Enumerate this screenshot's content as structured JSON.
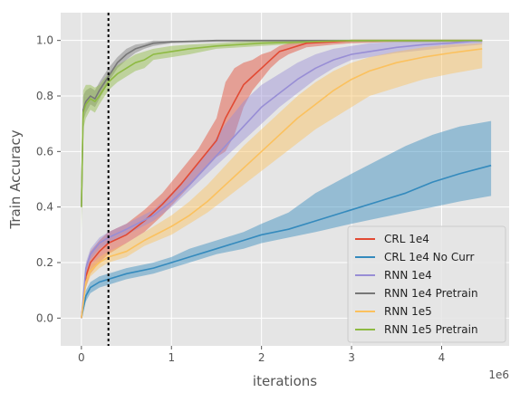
{
  "chart_data": {
    "type": "line",
    "title": "",
    "xlabel": "iterations",
    "ylabel": "Train Accuracy",
    "x_offset_label": "1e6",
    "xlim": [
      -0.23,
      4.75
    ],
    "ylim": [
      -0.1,
      1.1
    ],
    "x_ticks": [
      0,
      1,
      2,
      3,
      4
    ],
    "x_tick_labels": [
      "0",
      "1",
      "2",
      "3",
      "4"
    ],
    "y_ticks": [
      0.0,
      0.2,
      0.4,
      0.6,
      0.8,
      1.0
    ],
    "y_tick_labels": [
      "0.0",
      "0.2",
      "0.4",
      "0.6",
      "0.8",
      "1.0"
    ],
    "grid": true,
    "style": "ggplot",
    "legend_position": "lower-right",
    "vline": {
      "x": 0.3,
      "style": "dotted",
      "color": "#000000"
    },
    "series": [
      {
        "name": "CRL 1e4",
        "color": "#E24A33",
        "x": [
          0,
          0.05,
          0.1,
          0.2,
          0.3,
          0.5,
          0.7,
          0.9,
          1.1,
          1.3,
          1.5,
          1.6,
          1.7,
          1.8,
          1.9,
          2.0,
          2.1,
          2.2,
          2.3,
          2.5,
          2.8,
          3.0,
          3.5,
          4.0,
          4.45
        ],
        "y": [
          0.0,
          0.15,
          0.2,
          0.24,
          0.27,
          0.3,
          0.35,
          0.41,
          0.48,
          0.56,
          0.64,
          0.72,
          0.78,
          0.84,
          0.87,
          0.9,
          0.93,
          0.96,
          0.97,
          0.99,
          0.995,
          1.0,
          1.0,
          1.0,
          1.0
        ],
        "lower": [
          0.0,
          0.11,
          0.16,
          0.2,
          0.23,
          0.27,
          0.31,
          0.37,
          0.44,
          0.51,
          0.58,
          0.6,
          0.66,
          0.76,
          0.82,
          0.86,
          0.9,
          0.93,
          0.95,
          0.975,
          0.985,
          0.99,
          0.995,
          0.995,
          0.995
        ],
        "upper": [
          0.0,
          0.19,
          0.24,
          0.28,
          0.31,
          0.34,
          0.39,
          0.45,
          0.53,
          0.61,
          0.72,
          0.85,
          0.9,
          0.92,
          0.93,
          0.95,
          0.96,
          0.98,
          0.99,
          1.0,
          1.0,
          1.0,
          1.0,
          1.0,
          1.0
        ]
      },
      {
        "name": "CRL 1e4 No Curr",
        "color": "#348ABD",
        "x": [
          0,
          0.05,
          0.1,
          0.2,
          0.3,
          0.5,
          0.8,
          1.0,
          1.2,
          1.5,
          1.8,
          2.0,
          2.3,
          2.6,
          3.0,
          3.3,
          3.6,
          3.9,
          4.2,
          4.55
        ],
        "y": [
          0.0,
          0.08,
          0.11,
          0.13,
          0.14,
          0.16,
          0.18,
          0.2,
          0.22,
          0.25,
          0.28,
          0.3,
          0.32,
          0.35,
          0.39,
          0.42,
          0.45,
          0.49,
          0.52,
          0.55
        ],
        "lower": [
          0.0,
          0.06,
          0.09,
          0.11,
          0.12,
          0.14,
          0.16,
          0.18,
          0.2,
          0.23,
          0.25,
          0.27,
          0.29,
          0.31,
          0.34,
          0.36,
          0.38,
          0.4,
          0.42,
          0.44
        ],
        "upper": [
          0.0,
          0.1,
          0.13,
          0.15,
          0.16,
          0.18,
          0.2,
          0.22,
          0.25,
          0.28,
          0.31,
          0.34,
          0.38,
          0.45,
          0.52,
          0.57,
          0.62,
          0.66,
          0.69,
          0.71
        ]
      },
      {
        "name": "RNN 1e4",
        "color": "#988ED5",
        "x": [
          0,
          0.05,
          0.1,
          0.2,
          0.3,
          0.5,
          0.8,
          1.0,
          1.2,
          1.4,
          1.6,
          1.8,
          2.0,
          2.2,
          2.4,
          2.6,
          2.8,
          3.0,
          3.2,
          3.5,
          3.8,
          4.1,
          4.45
        ],
        "y": [
          0.0,
          0.18,
          0.23,
          0.27,
          0.29,
          0.32,
          0.37,
          0.42,
          0.48,
          0.55,
          0.62,
          0.69,
          0.76,
          0.81,
          0.86,
          0.9,
          0.93,
          0.95,
          0.96,
          0.975,
          0.985,
          0.99,
          1.0
        ],
        "lower": [
          0.0,
          0.16,
          0.21,
          0.25,
          0.27,
          0.3,
          0.35,
          0.4,
          0.46,
          0.52,
          0.58,
          0.64,
          0.7,
          0.76,
          0.81,
          0.86,
          0.9,
          0.93,
          0.94,
          0.955,
          0.965,
          0.975,
          0.985
        ],
        "upper": [
          0.0,
          0.2,
          0.25,
          0.29,
          0.31,
          0.34,
          0.39,
          0.45,
          0.52,
          0.6,
          0.7,
          0.78,
          0.84,
          0.88,
          0.92,
          0.95,
          0.97,
          0.98,
          0.99,
          0.995,
          1.0,
          1.0,
          1.0
        ]
      },
      {
        "name": "RNN 1e4 Pretrain",
        "color": "#777777",
        "x": [
          0,
          0.02,
          0.05,
          0.1,
          0.15,
          0.2,
          0.3,
          0.4,
          0.5,
          0.6,
          0.7,
          0.8,
          1.0,
          1.5,
          2.0,
          2.5,
          3.0,
          3.5,
          4.0,
          4.45
        ],
        "y": [
          0.4,
          0.75,
          0.78,
          0.8,
          0.79,
          0.82,
          0.87,
          0.92,
          0.95,
          0.97,
          0.98,
          0.99,
          0.995,
          1.0,
          1.0,
          1.0,
          1.0,
          1.0,
          1.0,
          1.0
        ],
        "lower": [
          0.35,
          0.71,
          0.74,
          0.77,
          0.76,
          0.79,
          0.85,
          0.9,
          0.93,
          0.955,
          0.97,
          0.98,
          0.99,
          0.995,
          0.995,
          0.995,
          0.995,
          0.995,
          0.995,
          0.995
        ],
        "upper": [
          0.5,
          0.8,
          0.82,
          0.83,
          0.82,
          0.85,
          0.9,
          0.94,
          0.97,
          0.985,
          0.99,
          1.0,
          1.0,
          1.0,
          1.0,
          1.0,
          1.0,
          1.0,
          1.0,
          1.0
        ]
      },
      {
        "name": "RNN 1e5",
        "color": "#FBC15E",
        "x": [
          0,
          0.05,
          0.1,
          0.2,
          0.3,
          0.5,
          0.7,
          1.0,
          1.2,
          1.4,
          1.6,
          1.8,
          2.0,
          2.2,
          2.4,
          2.6,
          2.8,
          3.0,
          3.2,
          3.5,
          3.8,
          4.1,
          4.45
        ],
        "y": [
          0.0,
          0.13,
          0.17,
          0.2,
          0.22,
          0.24,
          0.28,
          0.33,
          0.37,
          0.42,
          0.48,
          0.54,
          0.6,
          0.66,
          0.72,
          0.77,
          0.82,
          0.86,
          0.89,
          0.92,
          0.94,
          0.955,
          0.97
        ],
        "lower": [
          0.0,
          0.11,
          0.15,
          0.18,
          0.2,
          0.22,
          0.26,
          0.3,
          0.34,
          0.38,
          0.43,
          0.48,
          0.53,
          0.58,
          0.63,
          0.68,
          0.72,
          0.76,
          0.8,
          0.83,
          0.86,
          0.88,
          0.9
        ],
        "upper": [
          0.0,
          0.15,
          0.19,
          0.22,
          0.24,
          0.27,
          0.31,
          0.37,
          0.42,
          0.48,
          0.55,
          0.62,
          0.68,
          0.74,
          0.8,
          0.85,
          0.89,
          0.92,
          0.94,
          0.96,
          0.975,
          0.985,
          0.99
        ]
      },
      {
        "name": "RNN 1e5 Pretrain",
        "color": "#8EBA42",
        "x": [
          0,
          0.02,
          0.05,
          0.1,
          0.15,
          0.2,
          0.3,
          0.4,
          0.5,
          0.6,
          0.7,
          0.8,
          1.0,
          1.2,
          1.5,
          2.0,
          2.5,
          3.0,
          3.5,
          4.0,
          4.45
        ],
        "y": [
          0.4,
          0.74,
          0.77,
          0.79,
          0.78,
          0.8,
          0.85,
          0.88,
          0.9,
          0.92,
          0.93,
          0.95,
          0.96,
          0.97,
          0.98,
          0.99,
          0.995,
          1.0,
          1.0,
          1.0,
          1.0
        ],
        "lower": [
          0.3,
          0.68,
          0.72,
          0.75,
          0.74,
          0.77,
          0.82,
          0.85,
          0.87,
          0.89,
          0.9,
          0.93,
          0.94,
          0.95,
          0.97,
          0.98,
          0.99,
          0.995,
          0.995,
          0.995,
          0.995
        ],
        "upper": [
          0.5,
          0.82,
          0.84,
          0.84,
          0.83,
          0.84,
          0.88,
          0.91,
          0.93,
          0.95,
          0.96,
          0.97,
          0.98,
          0.985,
          0.99,
          1.0,
          1.0,
          1.0,
          1.0,
          1.0,
          1.0
        ]
      }
    ]
  }
}
